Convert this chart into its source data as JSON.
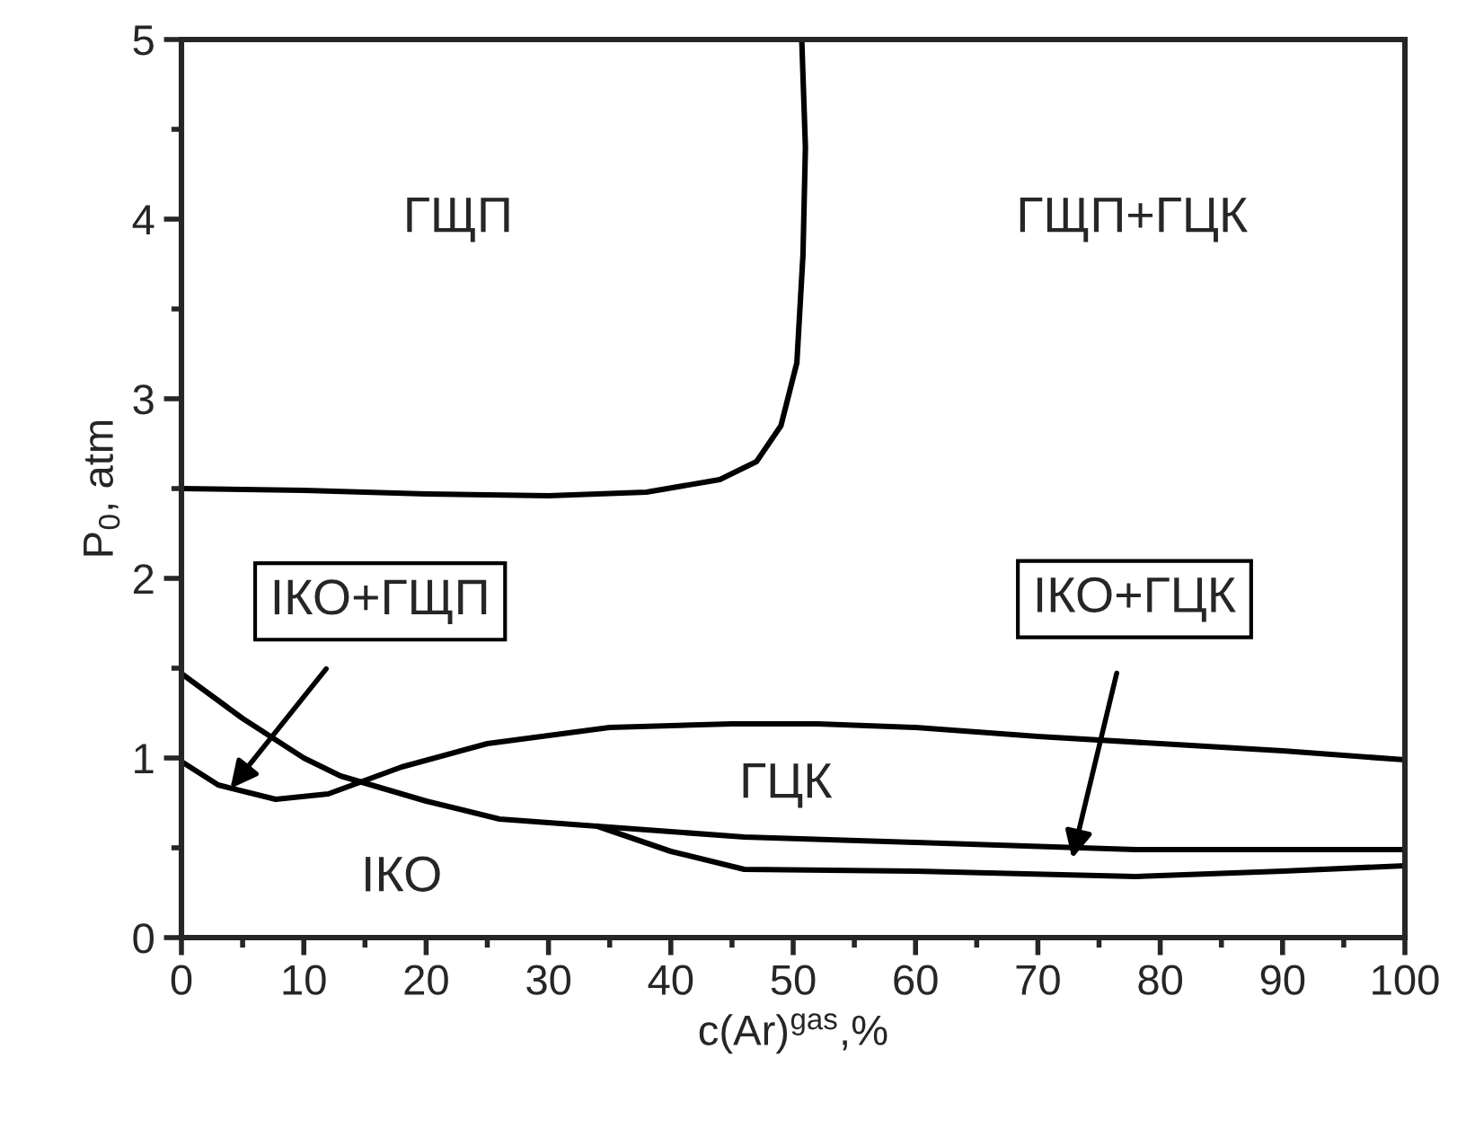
{
  "chart_data": {
    "type": "line",
    "xlabel": "c(Ar)$^{gas}$,%",
    "ylabel": "P$_{0}$, atm",
    "xlim": [
      0,
      100
    ],
    "ylim": [
      0,
      5
    ],
    "xticks": [
      0,
      10,
      20,
      30,
      40,
      50,
      60,
      70,
      80,
      90,
      100
    ],
    "yticks": [
      0,
      1,
      2,
      3,
      4,
      5
    ],
    "grid": false,
    "legend": false,
    "marker": "none",
    "line_style": "solid",
    "series": [
      {
        "color": "#000000",
        "x": [
          0,
          10,
          20,
          30,
          38,
          44,
          47,
          49,
          50.3,
          50.8,
          51,
          50.7
        ],
        "values": [
          2.5,
          2.49,
          2.47,
          2.46,
          2.48,
          2.55,
          2.65,
          2.85,
          3.2,
          3.8,
          4.4,
          5.0
        ]
      },
      {
        "color": "#000000",
        "x": [
          0,
          3,
          7.7,
          12,
          18,
          25,
          35,
          45,
          52,
          60,
          70,
          80,
          90,
          100
        ],
        "values": [
          0.98,
          0.85,
          0.77,
          0.8,
          0.95,
          1.08,
          1.17,
          1.19,
          1.19,
          1.17,
          1.12,
          1.08,
          1.04,
          0.99
        ]
      },
      {
        "color": "#000000",
        "x": [
          0,
          5,
          10,
          13,
          20,
          26,
          34,
          46,
          60,
          78,
          100
        ],
        "values": [
          1.47,
          1.22,
          1.0,
          0.9,
          0.76,
          0.66,
          0.62,
          0.56,
          0.53,
          0.49,
          0.49
        ]
      },
      {
        "color": "#000000",
        "x": [
          34,
          40,
          46,
          60,
          78,
          90,
          100
        ],
        "values": [
          0.62,
          0.48,
          0.38,
          0.37,
          0.34,
          0.37,
          0.4
        ]
      }
    ],
    "annotations": [
      "ГЩП",
      "ГЩП+ГЦК",
      "ГЦК",
      "ІКО",
      {
        "text": "ІКО+ГЩП",
        "x": 4,
        "y": 0.83
      },
      {
        "text": "ІКО+ГЦК",
        "x": 72.8,
        "y": 0.44
      }
    ]
  }
}
